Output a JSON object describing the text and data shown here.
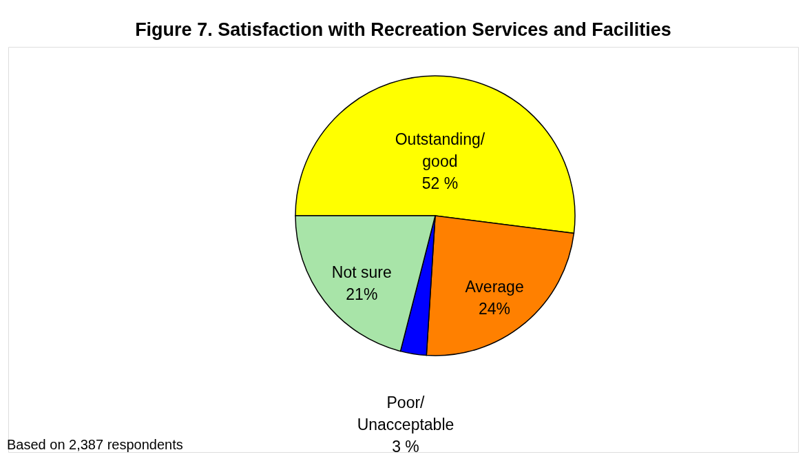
{
  "chart_data": {
    "type": "pie",
    "title": "Figure 7.  Satisfaction with Recreation Services and Facilities",
    "categories": [
      "Outstanding/good",
      "Average",
      "Poor/Unacceptable",
      "Not sure"
    ],
    "values": [
      52,
      24,
      3,
      21
    ],
    "colors": [
      "#ffff00",
      "#ff8000",
      "#0000ff",
      "#a8e4a8"
    ],
    "value_labels": [
      "52 %",
      "24%",
      "3 %",
      "21%"
    ],
    "legend": false,
    "annotations": [
      "Based on 2,387 respondents"
    ]
  }
}
